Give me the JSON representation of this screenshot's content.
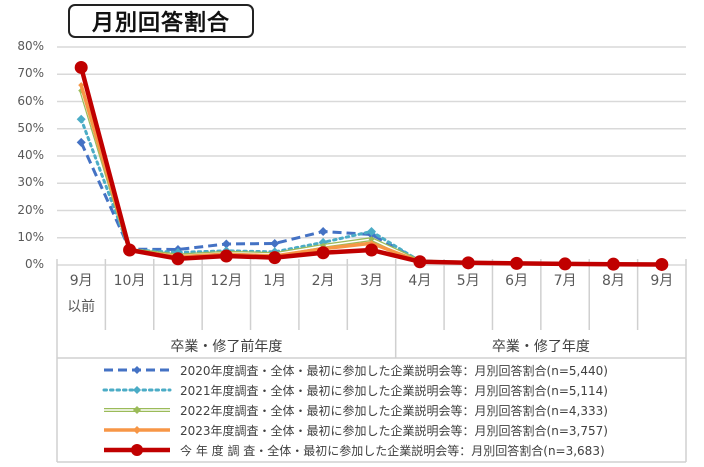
{
  "title": "月別回答割合",
  "chart_data": {
    "type": "line",
    "title": "月別回答割合",
    "xlabel": "",
    "ylabel": "",
    "ylim": [
      0,
      80
    ],
    "y_ticks": [
      "0%",
      "10%",
      "20%",
      "30%",
      "40%",
      "50%",
      "60%",
      "70%",
      "80%"
    ],
    "grid": true,
    "legend_position": "bottom",
    "categories": [
      "9月以前",
      "10月",
      "11月",
      "12月",
      "1月",
      "2月",
      "3月",
      "4月",
      "5月",
      "6月",
      "7月",
      "8月",
      "9月"
    ],
    "category_labels": [
      {
        "line1": "9月",
        "line2": "以前"
      },
      {
        "line1": "10月",
        "line2": ""
      },
      {
        "line1": "11月",
        "line2": ""
      },
      {
        "line1": "12月",
        "line2": ""
      },
      {
        "line1": "1月",
        "line2": ""
      },
      {
        "line1": "2月",
        "line2": ""
      },
      {
        "line1": "3月",
        "line2": ""
      },
      {
        "line1": "4月",
        "line2": ""
      },
      {
        "line1": "5月",
        "line2": ""
      },
      {
        "line1": "6月",
        "line2": ""
      },
      {
        "line1": "7月",
        "line2": ""
      },
      {
        "line1": "8月",
        "line2": ""
      },
      {
        "line1": "9月",
        "line2": ""
      }
    ],
    "groups": [
      {
        "label": "卒業・修了前年度",
        "span": [
          0,
          6
        ]
      },
      {
        "label": "卒業・修了年度",
        "span": [
          7,
          12
        ]
      }
    ],
    "series": [
      {
        "name": "2020年度調査・全体・最初に参加した企業説明会等：月別回答割合(n=5,440)",
        "color": "#4472C4",
        "style": "dashed",
        "marker": "diamond",
        "values": [
          45.0,
          5.8,
          5.7,
          7.7,
          7.9,
          12.3,
          11.2,
          1.5,
          0.9,
          0.6,
          0.4,
          0.3,
          0.2
        ]
      },
      {
        "name": "2021年度調査・全体・最初に参加した企業説明会等：月別回答割合(n=5,114)",
        "color": "#4BACC6",
        "style": "dotted",
        "marker": "diamond",
        "values": [
          53.5,
          5.6,
          4.6,
          5.2,
          4.8,
          8.3,
          12.3,
          1.4,
          0.9,
          0.6,
          0.4,
          0.3,
          0.2
        ]
      },
      {
        "name": "2022年度調査・全体・最初に参加した企業説明会等：月別回答割合(n=4,333)",
        "color": "#9BBB59",
        "style": "double",
        "marker": "diamond",
        "values": [
          64.0,
          5.5,
          3.5,
          4.5,
          4.0,
          7.0,
          9.5,
          1.3,
          0.8,
          0.6,
          0.4,
          0.3,
          0.2
        ]
      },
      {
        "name": "2023年度調査・全体・最初に参加した企業説明会等：月別回答割合(n=3,757)",
        "color": "#F79646",
        "style": "solid",
        "marker": "diamond",
        "values": [
          66.0,
          5.4,
          3.0,
          4.0,
          3.3,
          6.0,
          8.0,
          1.2,
          0.8,
          0.6,
          0.4,
          0.3,
          0.2
        ]
      },
      {
        "name": "今 年 度 調 査・全体・最初に参加した企業説明会等：月別回答割合(n=3,683)",
        "color": "#C00000",
        "style": "solid-thick",
        "marker": "circle",
        "values": [
          72.5,
          5.5,
          2.3,
          3.3,
          2.7,
          4.5,
          5.5,
          1.2,
          0.8,
          0.6,
          0.4,
          0.3,
          0.2
        ]
      }
    ]
  }
}
